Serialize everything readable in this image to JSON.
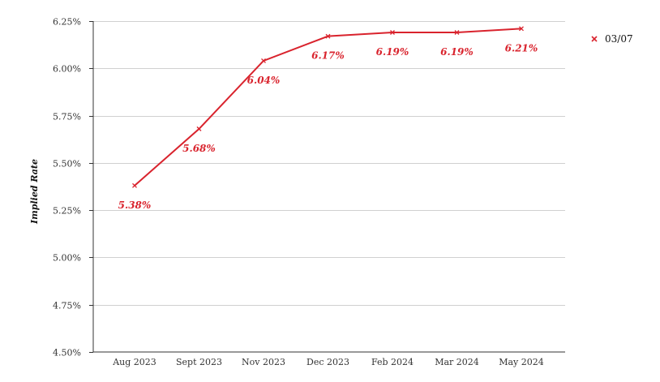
{
  "chart_data": {
    "type": "line",
    "categories": [
      "Aug 2023",
      "Sept 2023",
      "Nov 2023",
      "Dec 2023",
      "Feb 2024",
      "Mar 2024",
      "May 2024"
    ],
    "series": [
      {
        "name": "03/07",
        "values": [
          5.38,
          5.68,
          6.04,
          6.17,
          6.19,
          6.19,
          6.21
        ],
        "labels": [
          "5.38%",
          "5.68%",
          "6.04%",
          "6.17%",
          "6.19%",
          "6.19%",
          "6.21%"
        ]
      }
    ],
    "ylabel": "Implied Rate",
    "ylim": [
      4.5,
      6.25
    ],
    "yticks": [
      4.5,
      4.75,
      5.0,
      5.25,
      5.5,
      5.75,
      6.0,
      6.25
    ],
    "ytick_labels": [
      "4.50%",
      "4.75%",
      "5.00%",
      "5.25%",
      "5.50%",
      "5.75%",
      "6.00%",
      "6.25%"
    ],
    "grid": true,
    "legend": "top-right",
    "color": "#d9232d"
  }
}
